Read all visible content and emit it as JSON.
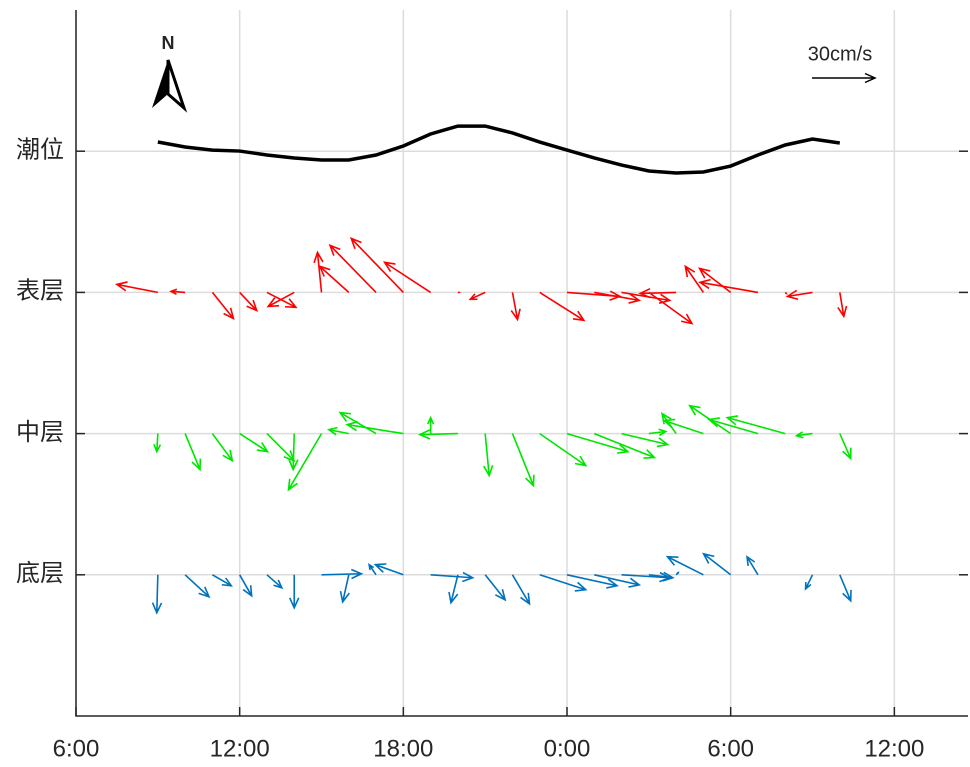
{
  "chart_data": {
    "type": "quiver",
    "xlim": [
      6,
      38.7
    ],
    "ylim": [
      0,
      5
    ],
    "xticks": [
      {
        "value": 6,
        "label": "6:00"
      },
      {
        "value": 12,
        "label": "12:00"
      },
      {
        "value": 18,
        "label": "18:00"
      },
      {
        "value": 24,
        "label": "0:00"
      },
      {
        "value": 30,
        "label": "6:00"
      },
      {
        "value": 36,
        "label": "12:00"
      }
    ],
    "yticks": [
      {
        "value": 4,
        "label": "潮位"
      },
      {
        "value": 3,
        "label": "表层"
      },
      {
        "value": 2,
        "label": "中层"
      },
      {
        "value": 1,
        "label": "底层"
      }
    ],
    "grid": true,
    "north_label": "N",
    "scale": {
      "label": "30cm/s",
      "value": 30
    },
    "tide": {
      "color": "#000000",
      "x": [
        9,
        10,
        11,
        12,
        13,
        14,
        15,
        16,
        17,
        18,
        19,
        20,
        21,
        22,
        23,
        24,
        25,
        26,
        27,
        28,
        29,
        30,
        31,
        32,
        33,
        34
      ],
      "values": [
        4.065,
        4.03,
        4.008,
        4.001,
        3.973,
        3.952,
        3.938,
        3.938,
        3.973,
        4.037,
        4.122,
        4.178,
        4.178,
        4.129,
        4.065,
        4.008,
        3.952,
        3.902,
        3.86,
        3.846,
        3.853,
        3.895,
        3.973,
        4.044,
        4.086,
        4.058
      ]
    },
    "x": [
      9,
      10,
      11,
      12,
      13,
      14,
      15,
      16,
      17,
      18,
      19,
      20,
      21,
      22,
      23,
      24,
      25,
      26,
      27,
      28,
      29,
      30,
      31,
      32,
      33,
      34
    ],
    "series": [
      {
        "color": "#ff0000",
        "baseline": 3,
        "u": [
          -19.5,
          -6.7,
          10,
          8.1,
          13.8,
          -12.4,
          -1.9,
          -13.8,
          -21.9,
          -24.8,
          -21.9,
          0.5,
          -7.1,
          2.4,
          21,
          25.2,
          21.4,
          22.9,
          20.5,
          -17.1,
          -8.6,
          -14.8,
          -27.6,
          0.5,
          -11.9,
          1.9
        ],
        "v": [
          3.8,
          0.5,
          -12.4,
          -8.6,
          -7.1,
          -6.7,
          19,
          12.4,
          22.4,
          25.7,
          14.3,
          0,
          -3.3,
          -12.9,
          -13.3,
          -1.9,
          -3.8,
          -3.8,
          -14.8,
          -0.5,
          12.4,
          11.4,
          4.8,
          -0.5,
          -1.9,
          -11.4
        ]
      },
      {
        "color": "#00e600",
        "baseline": 2,
        "u": [
          -0.5,
          7.1,
          9.5,
          13.3,
          12.9,
          -0.5,
          -15.7,
          -9.5,
          -17.1,
          -26.7,
          0,
          -18.1,
          1.9,
          10,
          21.9,
          29,
          28.6,
          21.9,
          8.1,
          -6.7,
          -18.6,
          -19.5,
          -23.3,
          -27.6,
          -7.6,
          5.2
        ],
        "v": [
          -8.6,
          -17.1,
          -12.9,
          -8.6,
          -12.9,
          -17.1,
          -26.7,
          1.9,
          10,
          4.3,
          7.6,
          -0.5,
          -20,
          -24.8,
          -15.2,
          -8.6,
          -11.4,
          -5.2,
          1,
          9.5,
          6.2,
          13.3,
          6.7,
          7.6,
          -1,
          -11.9
        ]
      },
      {
        "color": "#0072bd",
        "baseline": 1,
        "u": [
          -0.5,
          11.4,
          9,
          5.7,
          7.1,
          0,
          19,
          -2.9,
          -3.3,
          -13.3,
          20,
          -3.3,
          9.5,
          8.1,
          21.9,
          23.8,
          21.4,
          22.9,
          11.4,
          1,
          -17.1,
          -12.9,
          -5.2,
          0,
          -3.3,
          5.2
        ],
        "v": [
          -18.1,
          -10.5,
          -5.2,
          -10,
          -6.2,
          -15.7,
          0.5,
          -12.9,
          4.8,
          4.8,
          -1.4,
          -13.3,
          -11.9,
          -13.8,
          -7.1,
          -5.2,
          -4.8,
          -1.4,
          -1.4,
          1,
          8.6,
          10,
          8.6,
          0,
          -6.7,
          -12.4
        ]
      }
    ]
  }
}
